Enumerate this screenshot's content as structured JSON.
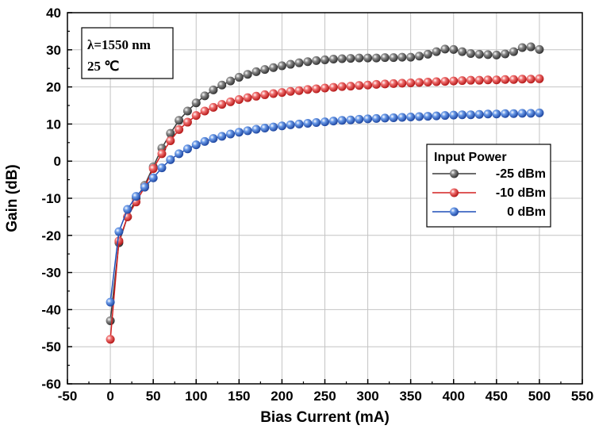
{
  "chart_data": {
    "type": "line",
    "title": "",
    "xlabel": "Bias Current (mA)",
    "ylabel": "Gain (dB)",
    "xlim": [
      -50,
      550
    ],
    "ylim": [
      -60,
      40
    ],
    "xticks": [
      -50,
      0,
      50,
      100,
      150,
      200,
      250,
      300,
      350,
      400,
      450,
      500,
      550
    ],
    "yticks": [
      -60,
      -50,
      -40,
      -30,
      -20,
      -10,
      0,
      10,
      20,
      30,
      40
    ],
    "grid": true,
    "legend_position": "right",
    "legend_title": "Input Power",
    "annotation_lines": [
      "λ=1550 nm",
      "25 ℃"
    ],
    "x": [
      0,
      10,
      20,
      30,
      40,
      50,
      60,
      70,
      80,
      90,
      100,
      110,
      120,
      130,
      140,
      150,
      160,
      170,
      180,
      190,
      200,
      210,
      220,
      230,
      240,
      250,
      260,
      270,
      280,
      290,
      300,
      310,
      320,
      330,
      340,
      350,
      360,
      370,
      380,
      390,
      400,
      410,
      420,
      430,
      440,
      450,
      460,
      470,
      480,
      490,
      500
    ],
    "series": [
      {
        "name": "-25 dBm",
        "color": "#3a3a3a",
        "values": [
          -43,
          -22,
          -15,
          -10,
          -6.5,
          -1.5,
          3.5,
          7.5,
          11,
          13.5,
          15.7,
          17.6,
          19.2,
          20.5,
          21.6,
          22.6,
          23.4,
          24.1,
          24.7,
          25.2,
          25.7,
          26.1,
          26.5,
          26.8,
          27.1,
          27.3,
          27.5,
          27.6,
          27.7,
          27.8,
          27.8,
          27.8,
          27.9,
          27.9,
          28.0,
          28.0,
          28.3,
          28.8,
          29.5,
          30.2,
          30.1,
          29.5,
          29.0,
          28.8,
          28.7,
          28.6,
          28.9,
          29.5,
          30.6,
          30.8,
          30.1
        ]
      },
      {
        "name": "-10 dBm",
        "color": "#d42020",
        "values": [
          -48,
          -21.5,
          -15,
          -11,
          -7,
          -2,
          2,
          5.5,
          8.5,
          10.5,
          12.3,
          13.5,
          14.5,
          15.3,
          16.0,
          16.6,
          17.1,
          17.5,
          17.9,
          18.2,
          18.5,
          18.8,
          19.0,
          19.3,
          19.5,
          19.7,
          19.9,
          20.1,
          20.2,
          20.4,
          20.5,
          20.7,
          20.8,
          20.9,
          21.0,
          21.1,
          21.2,
          21.3,
          21.4,
          21.5,
          21.6,
          21.7,
          21.8,
          21.8,
          21.9,
          21.9,
          22.0,
          22.0,
          22.1,
          22.1,
          22.2
        ]
      },
      {
        "name": "0 dBm",
        "color": "#1f4fb8",
        "values": [
          -38,
          -19,
          -13,
          -9.5,
          -7,
          -4.5,
          -1.8,
          0.4,
          2.0,
          3.3,
          4.4,
          5.3,
          6.1,
          6.7,
          7.3,
          7.8,
          8.2,
          8.6,
          8.9,
          9.2,
          9.5,
          9.8,
          10.0,
          10.2,
          10.4,
          10.6,
          10.8,
          11.0,
          11.1,
          11.3,
          11.4,
          11.5,
          11.6,
          11.7,
          11.8,
          11.9,
          12.0,
          12.1,
          12.2,
          12.3,
          12.4,
          12.5,
          12.5,
          12.6,
          12.7,
          12.7,
          12.8,
          12.8,
          12.9,
          12.9,
          13.0
        ]
      }
    ]
  }
}
